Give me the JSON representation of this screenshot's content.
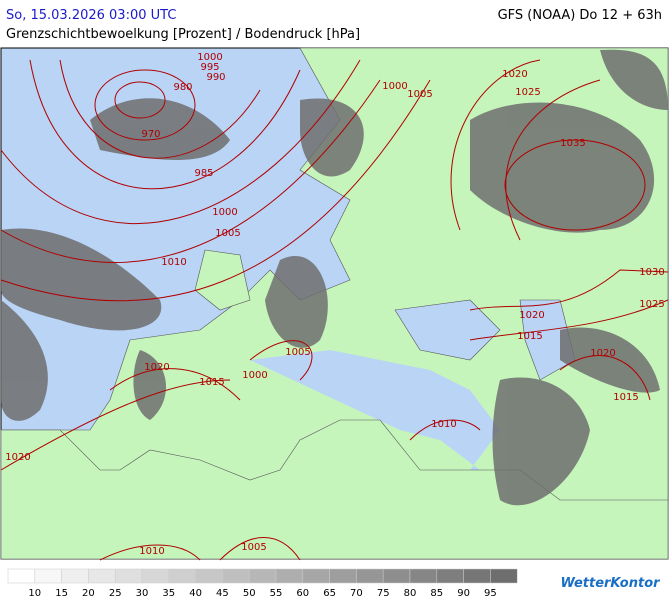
{
  "header": {
    "datetime": "So, 15.03.2026 03:00 UTC",
    "model": "GFS (NOAA) Do 12 + 63h",
    "title": "Grenzschichtbewoelkung [Prozent] / Bodendruck [hPa]"
  },
  "isobar_labels": [
    "1000",
    "995",
    "990",
    "980",
    "970",
    "985",
    "1000",
    "1005",
    "1010",
    "1000",
    "1005",
    "1020",
    "1025",
    "1035",
    "1030",
    "1025",
    "1020",
    "1015",
    "1020",
    "1015",
    "1005",
    "1000",
    "1015",
    "1020",
    "1010",
    "1020",
    "1010",
    "1005"
  ],
  "legend": {
    "labels": [
      10,
      15,
      20,
      25,
      30,
      35,
      40,
      45,
      50,
      55,
      60,
      65,
      70,
      75,
      80,
      85,
      90,
      95
    ]
  },
  "logo": "WetterKontor"
}
